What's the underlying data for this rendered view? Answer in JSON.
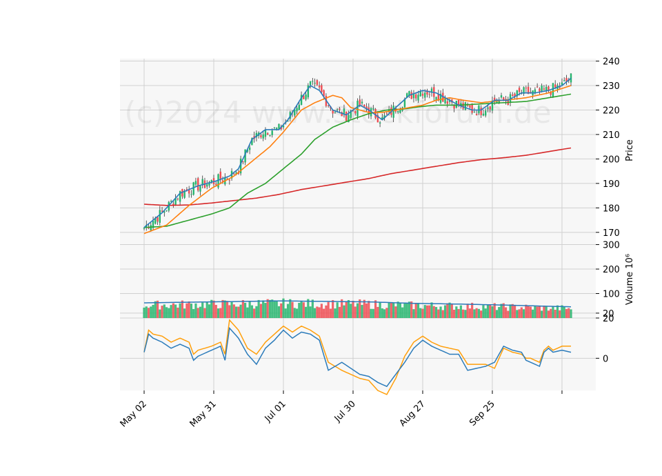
{
  "chart_data": {
    "type": "candlestick",
    "watermark": "(c)2024 www.stockforum.de",
    "x_ticks": [
      "May 02",
      "May 31",
      "Jul 01",
      "Jul 30",
      "Aug 27",
      "Sep 25"
    ],
    "price_panel": {
      "ylabel": "Price",
      "ylim": [
        166,
        241
      ],
      "yticks": [
        170,
        180,
        190,
        200,
        210,
        220,
        230,
        240
      ],
      "colors": {
        "up": "#26b56d",
        "down": "#ef4b52",
        "sma5": "#2b7bba",
        "sma10": "#ff7f0e",
        "sma20": "#2ca02c",
        "sma200": "#d62728"
      },
      "ma_series": {
        "sma5": [
          [
            0,
            172
          ],
          [
            8,
            178
          ],
          [
            16,
            186
          ],
          [
            24,
            189
          ],
          [
            32,
            191
          ],
          [
            38,
            193
          ],
          [
            42,
            196
          ],
          [
            48,
            208
          ],
          [
            54,
            212
          ],
          [
            60,
            212
          ],
          [
            64,
            216
          ],
          [
            70,
            225
          ],
          [
            74,
            230
          ],
          [
            78,
            228
          ],
          [
            84,
            220
          ],
          [
            90,
            218
          ],
          [
            96,
            222
          ],
          [
            100,
            220
          ],
          [
            106,
            216
          ],
          [
            112,
            221
          ],
          [
            118,
            226
          ],
          [
            124,
            228
          ],
          [
            130,
            227
          ],
          [
            136,
            224
          ],
          [
            140,
            222
          ],
          [
            146,
            220
          ],
          [
            150,
            220
          ],
          [
            156,
            224
          ],
          [
            162,
            224
          ],
          [
            168,
            227
          ],
          [
            174,
            227
          ],
          [
            180,
            228
          ],
          [
            186,
            230
          ],
          [
            190,
            233
          ]
        ],
        "sma10": [
          [
            0,
            169.5
          ],
          [
            10,
            173
          ],
          [
            20,
            181
          ],
          [
            30,
            188
          ],
          [
            40,
            193
          ],
          [
            48,
            199
          ],
          [
            56,
            205
          ],
          [
            62,
            211
          ],
          [
            70,
            220
          ],
          [
            76,
            223
          ],
          [
            84,
            226
          ],
          [
            88,
            225
          ],
          [
            92,
            221
          ],
          [
            96,
            220
          ],
          [
            100,
            219
          ],
          [
            106,
            219
          ],
          [
            112,
            220
          ],
          [
            118,
            221
          ],
          [
            124,
            222
          ],
          [
            130,
            224
          ],
          [
            136,
            225
          ],
          [
            142,
            224
          ],
          [
            150,
            223
          ],
          [
            160,
            224
          ],
          [
            170,
            225
          ],
          [
            180,
            227
          ],
          [
            190,
            230
          ]
        ],
        "sma20": [
          [
            0,
            172
          ],
          [
            10,
            172.5
          ],
          [
            20,
            175
          ],
          [
            30,
            177.5
          ],
          [
            38,
            180
          ],
          [
            46,
            186
          ],
          [
            54,
            190
          ],
          [
            62,
            196
          ],
          [
            70,
            202
          ],
          [
            76,
            208
          ],
          [
            84,
            213
          ],
          [
            92,
            216
          ],
          [
            100,
            218.5
          ],
          [
            108,
            220
          ],
          [
            116,
            220.5
          ],
          [
            124,
            221.5
          ],
          [
            130,
            222
          ],
          [
            140,
            222
          ],
          [
            150,
            222.5
          ],
          [
            160,
            223
          ],
          [
            170,
            223.5
          ],
          [
            180,
            225
          ],
          [
            190,
            226.5
          ]
        ],
        "sma200": [
          [
            0,
            181.5
          ],
          [
            10,
            181
          ],
          [
            20,
            181.2
          ],
          [
            30,
            182
          ],
          [
            40,
            183
          ],
          [
            50,
            184
          ],
          [
            60,
            185.5
          ],
          [
            70,
            187.5
          ],
          [
            80,
            189
          ],
          [
            90,
            190.5
          ],
          [
            100,
            192
          ],
          [
            110,
            194
          ],
          [
            120,
            195.5
          ],
          [
            130,
            197
          ],
          [
            140,
            198.5
          ],
          [
            150,
            199.7
          ],
          [
            160,
            200.5
          ],
          [
            170,
            201.5
          ],
          [
            180,
            203
          ],
          [
            190,
            204.5
          ]
        ]
      }
    },
    "volume_panel": {
      "ylabel": "Volume  10⁶",
      "ylim": [
        0,
        310
      ],
      "yticks": [
        20,
        100,
        200,
        300
      ],
      "colors": {
        "up": "#26b56d",
        "down": "#ef4b52",
        "avg": "#2b7bba"
      },
      "avg_line": [
        [
          0,
          62
        ],
        [
          30,
          66
        ],
        [
          60,
          70
        ],
        [
          80,
          68
        ],
        [
          100,
          66
        ],
        [
          120,
          60
        ],
        [
          140,
          57
        ],
        [
          160,
          53
        ],
        [
          180,
          48
        ],
        [
          190,
          46
        ]
      ]
    },
    "oscillator_panel": {
      "ylim": [
        -16,
        20
      ],
      "yticks": [
        0,
        20
      ],
      "colors": {
        "line1": "#2b7bba",
        "line2": "#ff9f0a"
      },
      "line1": [
        [
          0,
          3
        ],
        [
          2,
          12
        ],
        [
          4,
          10
        ],
        [
          8,
          8
        ],
        [
          12,
          5
        ],
        [
          16,
          7
        ],
        [
          20,
          5
        ],
        [
          22,
          -1
        ],
        [
          24,
          1
        ],
        [
          30,
          4
        ],
        [
          34,
          6
        ],
        [
          36,
          -1
        ],
        [
          38,
          15
        ],
        [
          42,
          10
        ],
        [
          46,
          2
        ],
        [
          50,
          -3
        ],
        [
          54,
          5
        ],
        [
          58,
          9
        ],
        [
          62,
          14
        ],
        [
          66,
          10
        ],
        [
          70,
          13
        ],
        [
          74,
          12
        ],
        [
          78,
          9
        ],
        [
          82,
          -6
        ],
        [
          88,
          -2
        ],
        [
          92,
          -5
        ],
        [
          96,
          -8
        ],
        [
          100,
          -9
        ],
        [
          104,
          -12
        ],
        [
          108,
          -14
        ],
        [
          112,
          -8
        ],
        [
          116,
          -2
        ],
        [
          120,
          5
        ],
        [
          124,
          9
        ],
        [
          128,
          6
        ],
        [
          132,
          4
        ],
        [
          136,
          2
        ],
        [
          140,
          2
        ],
        [
          144,
          -6
        ],
        [
          148,
          -5
        ],
        [
          152,
          -4
        ],
        [
          156,
          -2
        ],
        [
          160,
          6
        ],
        [
          164,
          4
        ],
        [
          168,
          3
        ],
        [
          170,
          -1
        ],
        [
          172,
          -2
        ],
        [
          176,
          -4
        ],
        [
          178,
          3
        ],
        [
          180,
          5
        ],
        [
          182,
          3
        ],
        [
          186,
          4
        ],
        [
          190,
          3
        ]
      ],
      "line2": [
        [
          0,
          3
        ],
        [
          2,
          14
        ],
        [
          4,
          12
        ],
        [
          8,
          11
        ],
        [
          12,
          8
        ],
        [
          16,
          10
        ],
        [
          20,
          8
        ],
        [
          22,
          2
        ],
        [
          24,
          4
        ],
        [
          30,
          6
        ],
        [
          34,
          8
        ],
        [
          36,
          2
        ],
        [
          38,
          19
        ],
        [
          42,
          14
        ],
        [
          46,
          5
        ],
        [
          50,
          2
        ],
        [
          54,
          8
        ],
        [
          58,
          12
        ],
        [
          62,
          16
        ],
        [
          66,
          13
        ],
        [
          70,
          16
        ],
        [
          74,
          14
        ],
        [
          78,
          11
        ],
        [
          82,
          -2
        ],
        [
          88,
          -6
        ],
        [
          92,
          -8
        ],
        [
          96,
          -10
        ],
        [
          100,
          -11
        ],
        [
          104,
          -16
        ],
        [
          108,
          -18
        ],
        [
          112,
          -10
        ],
        [
          116,
          1
        ],
        [
          120,
          8
        ],
        [
          124,
          11
        ],
        [
          128,
          8
        ],
        [
          132,
          6
        ],
        [
          136,
          5
        ],
        [
          140,
          4
        ],
        [
          144,
          -3
        ],
        [
          148,
          -3
        ],
        [
          152,
          -3
        ],
        [
          156,
          -5
        ],
        [
          160,
          5
        ],
        [
          164,
          3
        ],
        [
          168,
          2
        ],
        [
          170,
          0
        ],
        [
          172,
          0
        ],
        [
          176,
          -2
        ],
        [
          178,
          4
        ],
        [
          180,
          6
        ],
        [
          182,
          4
        ],
        [
          186,
          6
        ],
        [
          190,
          6
        ]
      ]
    }
  }
}
